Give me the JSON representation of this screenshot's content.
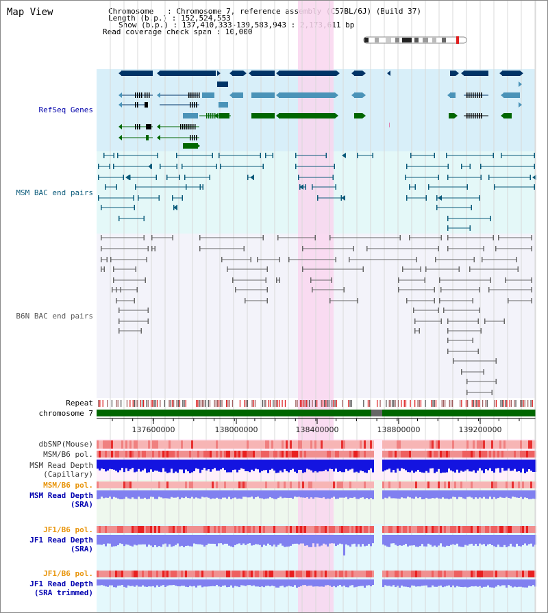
{
  "header": {
    "title": "Map View",
    "chromosome_line": "Chromosome   : Chromosome 7, reference assembly (C57BL/6J) (Build 37)",
    "length_line": "Length (b.p.) : 152,524,553",
    "show_line": "Show (b.p.) : 137,410,333-139,583,943 : 2,173,611 bp",
    "coverage_line": "Read coverage check span : 10,000"
  },
  "tracks": {
    "refseq": "RefSeq Genes",
    "msm_bac": "MSM BAC end pairs",
    "b6n_bac": "B6N BAC end pairs",
    "repeat": "Repeat",
    "chromosome": "chromosome 7",
    "dbsnp": "dbSNP(Mouse)",
    "msm_pol": "MSM/B6 pol.",
    "msm_depth_cap_1": "MSM Read Depth",
    "msm_depth_cap_2": "(Capillary)",
    "msm_pol_sra": "MSM/B6 pol.",
    "msm_depth_sra_1": "MSM Read Depth",
    "msm_depth_sra_2": "(SRA)",
    "jf1_pol": "JF1/B6 pol.",
    "jf1_depth_1": "JF1 Read Depth",
    "jf1_depth_2": "(SRA)",
    "jf1_pol_t": "JF1/B6 pol.",
    "jf1_depth_t_1": "JF1 Read Depth",
    "jf1_depth_t_2": "(SRA trimmed)"
  },
  "axis": {
    "ticks": [
      "137600000",
      "138000000",
      "138400000",
      "138800000",
      "139200000"
    ]
  },
  "colors": {
    "refseq_bg": "#d8eff9",
    "msm_bg": "#e4f8f8",
    "b6n_bg": "#f0f0f8",
    "highlight": "#f9d6ee",
    "gene_dark": "#003366",
    "gene_mid": "#4a93b8",
    "gene_green": "#006600",
    "bac_msm": "#0a5a7a",
    "bac_b6n": "#666666",
    "depth_blue": "#1414e0",
    "depth_lav": "#8080f0"
  }
}
